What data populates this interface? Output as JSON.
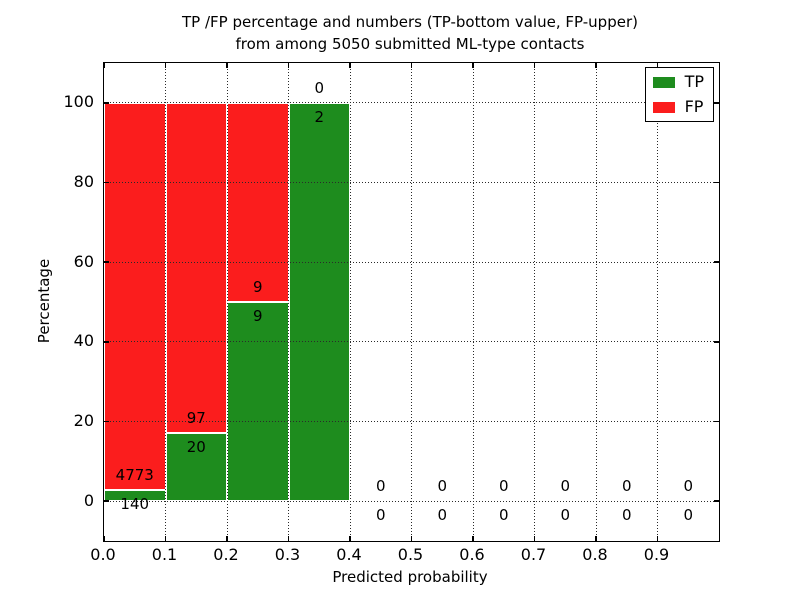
{
  "figure": {
    "title_line1": "TP /FP percentage and numbers (TP-bottom value, FP-upper)",
    "title_line2": "from among 5050 submitted ML-type contacts"
  },
  "chart_data": {
    "type": "bar",
    "stacked": true,
    "title": "TP /FP percentage and numbers (TP-bottom value, FP-upper)\nfrom among 5050 submitted ML-type contacts",
    "xlabel": "Predicted probability",
    "ylabel": "Percentage",
    "xlim": [
      0.0,
      1.0
    ],
    "ylim": [
      -10,
      110
    ],
    "x_tick_labels": [
      "0.0",
      "0.1",
      "0.2",
      "0.3",
      "0.4",
      "0.5",
      "0.6",
      "0.7",
      "0.8",
      "0.9"
    ],
    "y_tick_labels": [
      "0",
      "20",
      "40",
      "60",
      "80",
      "100"
    ],
    "grid": "dotted, major ticks, drawn above bars",
    "legend": {
      "position": "upper right",
      "entries": [
        {
          "label": "TP",
          "color": "#1e8c1e"
        },
        {
          "label": "FP",
          "color": "#fb1d1d"
        }
      ]
    },
    "bin_width": 0.1,
    "bins": [
      {
        "x_range": [
          0.0,
          0.1
        ],
        "tp_count": 140,
        "fp_count": 4773,
        "tp_pct": 2.85,
        "fp_pct": 97.15
      },
      {
        "x_range": [
          0.1,
          0.2
        ],
        "tp_count": 20,
        "fp_count": 97,
        "tp_pct": 17.09,
        "fp_pct": 82.91
      },
      {
        "x_range": [
          0.2,
          0.3
        ],
        "tp_count": 9,
        "fp_count": 9,
        "tp_pct": 50,
        "fp_pct": 50
      },
      {
        "x_range": [
          0.3,
          0.4
        ],
        "tp_count": 2,
        "fp_count": 0,
        "tp_pct": 100,
        "fp_pct": 0
      },
      {
        "x_range": [
          0.4,
          0.5
        ],
        "tp_count": 0,
        "fp_count": 0,
        "tp_pct": 0,
        "fp_pct": 0
      },
      {
        "x_range": [
          0.5,
          0.6
        ],
        "tp_count": 0,
        "fp_count": 0,
        "tp_pct": 0,
        "fp_pct": 0
      },
      {
        "x_range": [
          0.6,
          0.7
        ],
        "tp_count": 0,
        "fp_count": 0,
        "tp_pct": 0,
        "fp_pct": 0
      },
      {
        "x_range": [
          0.7,
          0.8
        ],
        "tp_count": 0,
        "fp_count": 0,
        "tp_pct": 0,
        "fp_pct": 0
      },
      {
        "x_range": [
          0.8,
          0.9
        ],
        "tp_count": 0,
        "fp_count": 0,
        "tp_pct": 0,
        "fp_pct": 0
      },
      {
        "x_range": [
          0.9,
          1.0
        ],
        "tp_count": 0,
        "fp_count": 0,
        "tp_pct": 0,
        "fp_pct": 0
      }
    ],
    "label_scheme": "FP count printed just above green top, TP count just below green top, per bin"
  }
}
